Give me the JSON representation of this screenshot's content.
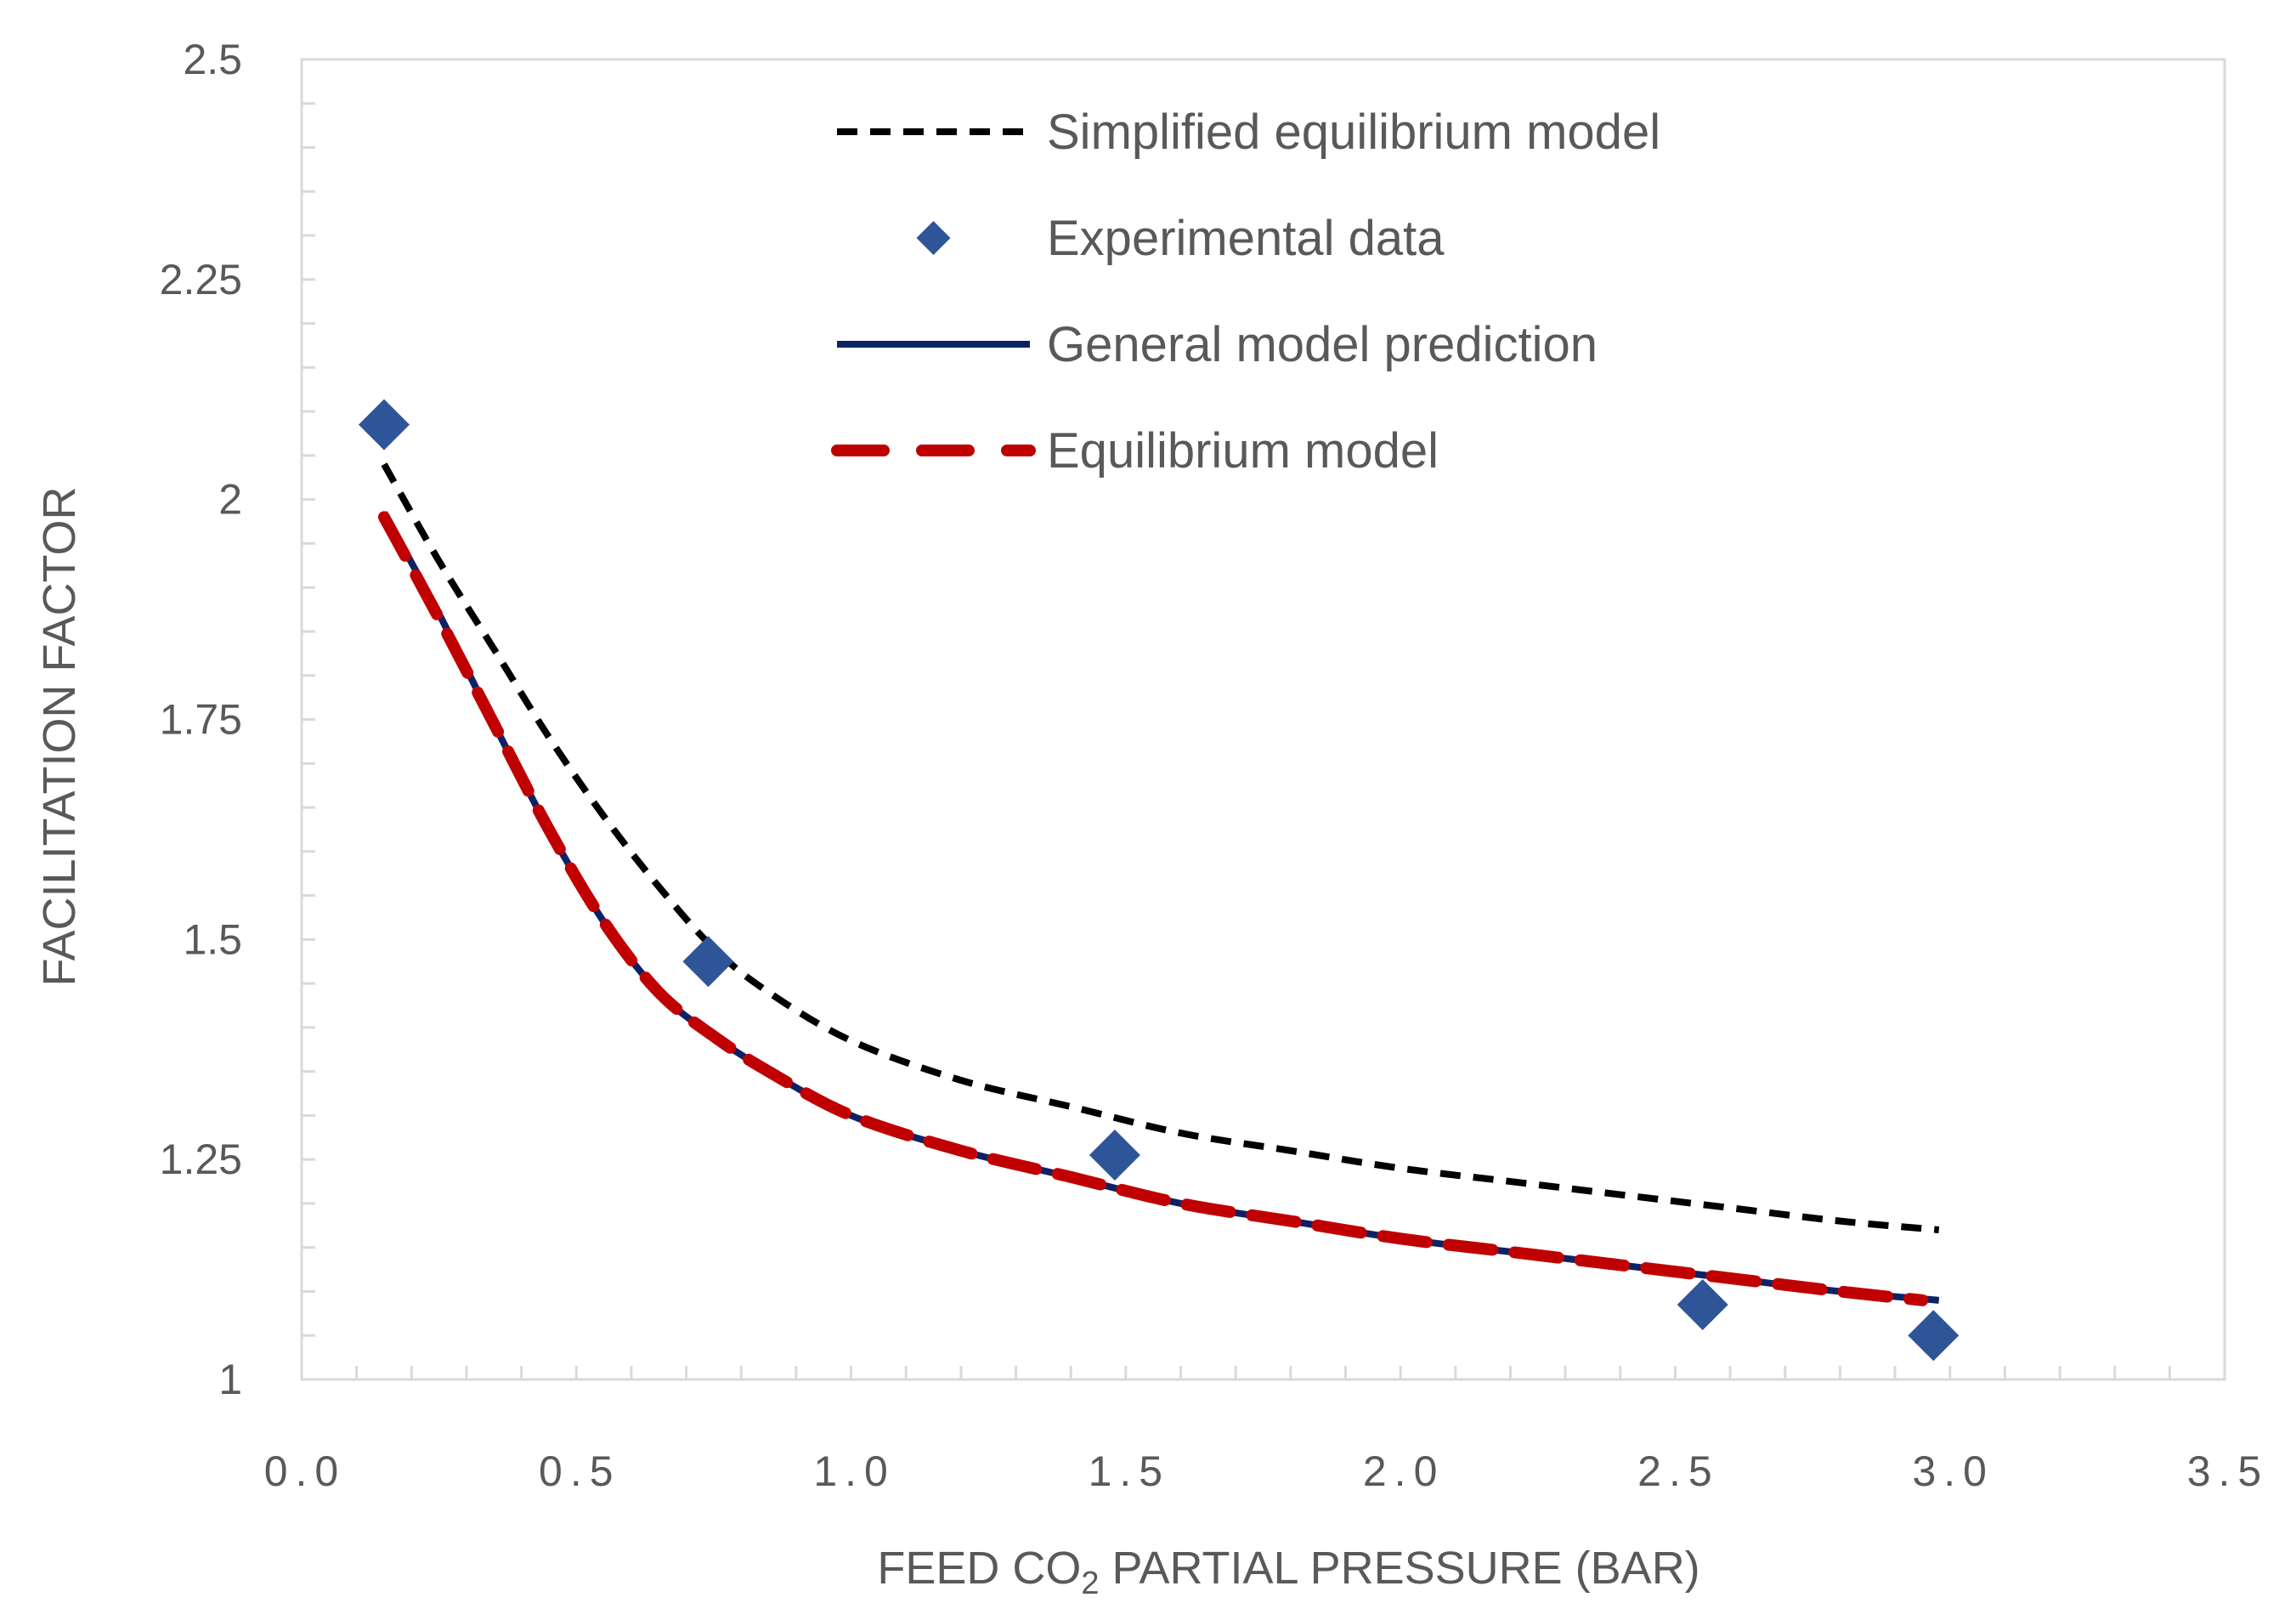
{
  "chart_data": {
    "type": "line",
    "title": "",
    "xlabel": "FEED CO₂ PARTIAL PRESSURE (BAR)",
    "xlabel_parts": {
      "before": "FEED CO",
      "sub": "2",
      "after": " PARTIAL PRESSURE (BAR)"
    },
    "ylabel": "FACILITATION FACTOR",
    "xlim": [
      0,
      3.5
    ],
    "ylim": [
      1,
      2.5
    ],
    "x_ticks": [
      "0.0",
      "0.5",
      "1.0",
      "1.5",
      "2.0",
      "2.5",
      "3.0",
      "3.5"
    ],
    "y_ticks": [
      "1",
      "1.25",
      "1.5",
      "1.75",
      "2",
      "2.25",
      "2.5"
    ],
    "grid": false,
    "legend_position": "top-center",
    "colors": {
      "simplified": "#000000",
      "experimental": "#2e5597",
      "general": "#0d2266",
      "equilibrium": "#c00000",
      "axis": "#d9d9d9",
      "text": "#595959"
    },
    "series": [
      {
        "name": "Simplified equilibrium model",
        "style": "dashed-black",
        "x": [
          0.15,
          0.25,
          0.35,
          0.45,
          0.55,
          0.65,
          0.75,
          0.85,
          1.0,
          1.2,
          1.4,
          1.6,
          1.8,
          2.0,
          2.2,
          2.4,
          2.6,
          2.8,
          2.98
        ],
        "y": [
          2.04,
          1.93,
          1.83,
          1.73,
          1.64,
          1.56,
          1.49,
          1.44,
          1.385,
          1.34,
          1.31,
          1.28,
          1.26,
          1.24,
          1.225,
          1.21,
          1.195,
          1.18,
          1.17
        ]
      },
      {
        "name": "Experimental data",
        "style": "markers",
        "x": [
          0.15,
          0.74,
          1.48,
          2.55,
          2.97
        ],
        "y": [
          2.085,
          1.475,
          1.255,
          1.085,
          1.05
        ]
      },
      {
        "name": "General model prediction",
        "style": "solid-navy",
        "x": [
          0.15,
          0.25,
          0.35,
          0.45,
          0.55,
          0.65,
          0.75,
          0.85,
          1.0,
          1.2,
          1.4,
          1.6,
          1.8,
          2.0,
          2.2,
          2.4,
          2.6,
          2.8,
          2.98
        ],
        "y": [
          1.985,
          1.87,
          1.745,
          1.625,
          1.52,
          1.44,
          1.39,
          1.35,
          1.3,
          1.26,
          1.23,
          1.2,
          1.18,
          1.16,
          1.145,
          1.13,
          1.115,
          1.1,
          1.09
        ]
      },
      {
        "name": "Equilibrium model",
        "style": "dashed-red",
        "x": [
          0.15,
          0.25,
          0.35,
          0.45,
          0.55,
          0.65,
          0.75,
          0.85,
          1.0,
          1.2,
          1.4,
          1.6,
          1.8,
          2.0,
          2.2,
          2.4,
          2.6,
          2.8,
          2.95
        ],
        "y": [
          1.98,
          1.865,
          1.745,
          1.625,
          1.52,
          1.44,
          1.39,
          1.35,
          1.3,
          1.26,
          1.23,
          1.2,
          1.18,
          1.16,
          1.145,
          1.13,
          1.115,
          1.1,
          1.09
        ]
      }
    ]
  }
}
